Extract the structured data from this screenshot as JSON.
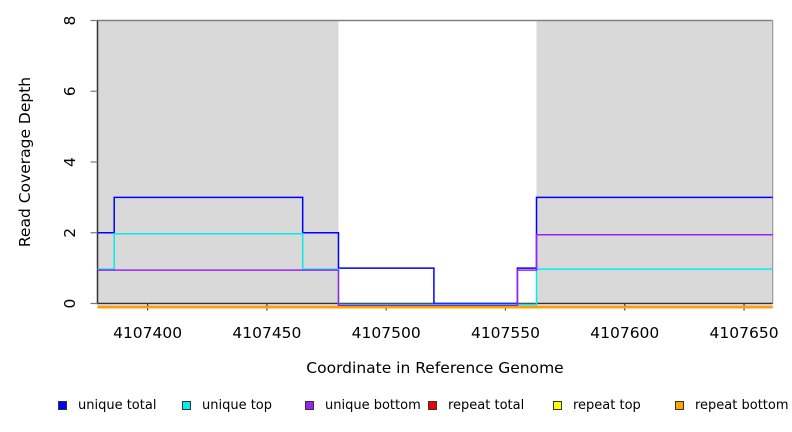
{
  "figure": {
    "background": "#ffffff"
  },
  "chart_data": {
    "type": "line",
    "subtype": "step",
    "title": "",
    "xlabel": "Coordinate in Reference Genome",
    "ylabel": "Read Coverage Depth",
    "xlim": [
      4107379,
      4107662
    ],
    "ylim": [
      0,
      8
    ],
    "x_ticks": [
      4107400,
      4107450,
      4107500,
      4107550,
      4107600,
      4107650
    ],
    "y_ticks": [
      0,
      2,
      4,
      6,
      8
    ],
    "grid": false,
    "legend_position": "bottom",
    "shade_color": "#d9d9d9",
    "shaded_regions": [
      {
        "start": 4107379,
        "end": 4107480
      },
      {
        "start": 4107563,
        "end": 4107662
      }
    ],
    "series": [
      {
        "name": "unique total",
        "color": "#0000ff",
        "points": [
          [
            4107379,
            2
          ],
          [
            4107386,
            3
          ],
          [
            4107465,
            2
          ],
          [
            4107480,
            1
          ],
          [
            4107520,
            0
          ],
          [
            4107555,
            1
          ],
          [
            4107563,
            3
          ],
          [
            4107662,
            3
          ]
        ]
      },
      {
        "name": "unique top",
        "color": "#00eeee",
        "points": [
          [
            4107379,
            1
          ],
          [
            4107386,
            2
          ],
          [
            4107465,
            1
          ],
          [
            4107480,
            0
          ],
          [
            4107563,
            1
          ],
          [
            4107662,
            1
          ]
        ]
      },
      {
        "name": "unique bottom",
        "color": "#a020f0",
        "points": [
          [
            4107379,
            1
          ],
          [
            4107480,
            0
          ],
          [
            4107555,
            1
          ],
          [
            4107563,
            2
          ],
          [
            4107662,
            2
          ]
        ]
      },
      {
        "name": "repeat total",
        "color": "#ee0000",
        "points": [
          [
            4107379,
            0
          ],
          [
            4107662,
            0
          ]
        ]
      },
      {
        "name": "repeat top",
        "color": "#ffff00",
        "points": [
          [
            4107379,
            0
          ],
          [
            4107662,
            0
          ]
        ]
      },
      {
        "name": "repeat bottom",
        "color": "#ffa500",
        "points": [
          [
            4107379,
            0
          ],
          [
            4107662,
            0
          ]
        ]
      }
    ]
  }
}
